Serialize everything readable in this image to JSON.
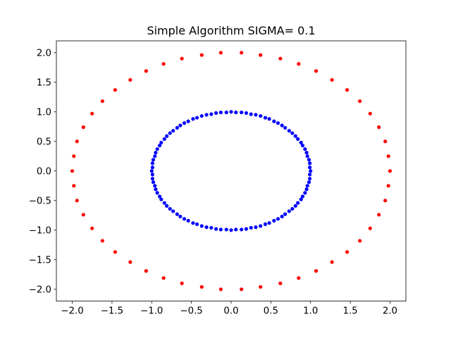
{
  "chart_data": {
    "type": "scatter",
    "title": "Simple Algorithm SIGMA= 0.1",
    "xlabel": "",
    "ylabel": "",
    "xlim": [
      -2.2,
      2.2
    ],
    "ylim": [
      -2.2,
      2.2
    ],
    "xticks": [
      -2.0,
      -1.5,
      -1.0,
      -0.5,
      0.0,
      0.5,
      1.0,
      1.5,
      2.0
    ],
    "yticks": [
      -2.0,
      -1.5,
      -1.0,
      -0.5,
      0.0,
      0.5,
      1.0,
      1.5,
      2.0
    ],
    "xtick_labels": [
      "−2.0",
      "−1.5",
      "−1.0",
      "−0.5",
      "0.0",
      "0.5",
      "1.0",
      "1.5",
      "2.0"
    ],
    "ytick_labels": [
      "−2.0",
      "−1.5",
      "−1.0",
      "−0.5",
      "0.0",
      "0.5",
      "1.0",
      "1.5",
      "2.0"
    ],
    "grid": false,
    "legend": "none",
    "series": [
      {
        "color": "#ff0000",
        "points": [
          [
            2.0,
            0.0
          ],
          [
            1.98,
            0.25
          ],
          [
            1.94,
            0.5
          ],
          [
            1.86,
            0.74
          ],
          [
            1.75,
            0.97
          ],
          [
            1.62,
            1.18
          ],
          [
            1.46,
            1.37
          ],
          [
            1.27,
            1.54
          ],
          [
            1.07,
            1.69
          ],
          [
            0.85,
            1.81
          ],
          [
            0.62,
            1.9
          ],
          [
            0.37,
            1.96
          ],
          [
            0.13,
            2.0
          ],
          [
            -0.13,
            2.0
          ],
          [
            -0.37,
            1.96
          ],
          [
            -0.62,
            1.9
          ],
          [
            -0.85,
            1.81
          ],
          [
            -1.07,
            1.69
          ],
          [
            -1.27,
            1.54
          ],
          [
            -1.46,
            1.37
          ],
          [
            -1.62,
            1.18
          ],
          [
            -1.75,
            0.97
          ],
          [
            -1.86,
            0.74
          ],
          [
            -1.94,
            0.5
          ],
          [
            -1.98,
            0.25
          ],
          [
            -2.0,
            0.0
          ],
          [
            -1.98,
            -0.25
          ],
          [
            -1.94,
            -0.5
          ],
          [
            -1.86,
            -0.74
          ],
          [
            -1.75,
            -0.97
          ],
          [
            -1.62,
            -1.18
          ],
          [
            -1.46,
            -1.37
          ],
          [
            -1.27,
            -1.54
          ],
          [
            -1.07,
            -1.69
          ],
          [
            -0.85,
            -1.81
          ],
          [
            -0.62,
            -1.9
          ],
          [
            -0.37,
            -1.96
          ],
          [
            -0.13,
            -2.0
          ],
          [
            0.13,
            -2.0
          ],
          [
            0.37,
            -1.96
          ],
          [
            0.62,
            -1.9
          ],
          [
            0.85,
            -1.81
          ],
          [
            1.07,
            -1.69
          ],
          [
            1.27,
            -1.54
          ],
          [
            1.46,
            -1.37
          ],
          [
            1.62,
            -1.18
          ],
          [
            1.75,
            -0.97
          ],
          [
            1.86,
            -0.74
          ],
          [
            1.94,
            -0.5
          ],
          [
            1.98,
            -0.25
          ]
        ]
      },
      {
        "color": "#0000ff",
        "points": [
          [
            1.0,
            0.0
          ],
          [
            0.99,
            0.06
          ],
          [
            0.99,
            0.13
          ],
          [
            0.98,
            0.19
          ],
          [
            0.96,
            0.25
          ],
          [
            0.95,
            0.31
          ],
          [
            0.93,
            0.37
          ],
          [
            0.9,
            0.43
          ],
          [
            0.88,
            0.48
          ],
          [
            0.84,
            0.54
          ],
          [
            0.81,
            0.59
          ],
          [
            0.77,
            0.64
          ],
          [
            0.73,
            0.68
          ],
          [
            0.68,
            0.73
          ],
          [
            0.64,
            0.77
          ],
          [
            0.59,
            0.81
          ],
          [
            0.54,
            0.84
          ],
          [
            0.48,
            0.88
          ],
          [
            0.43,
            0.9
          ],
          [
            0.37,
            0.93
          ],
          [
            0.31,
            0.95
          ],
          [
            0.25,
            0.96
          ],
          [
            0.19,
            0.98
          ],
          [
            0.13,
            0.99
          ],
          [
            0.06,
            0.99
          ],
          [
            0.0,
            1.0
          ],
          [
            -0.06,
            0.99
          ],
          [
            -0.13,
            0.99
          ],
          [
            -0.19,
            0.98
          ],
          [
            -0.25,
            0.96
          ],
          [
            -0.31,
            0.95
          ],
          [
            -0.37,
            0.93
          ],
          [
            -0.43,
            0.9
          ],
          [
            -0.48,
            0.88
          ],
          [
            -0.54,
            0.84
          ],
          [
            -0.59,
            0.81
          ],
          [
            -0.64,
            0.77
          ],
          [
            -0.68,
            0.73
          ],
          [
            -0.73,
            0.68
          ],
          [
            -0.77,
            0.64
          ],
          [
            -0.81,
            0.59
          ],
          [
            -0.84,
            0.54
          ],
          [
            -0.88,
            0.48
          ],
          [
            -0.9,
            0.43
          ],
          [
            -0.93,
            0.37
          ],
          [
            -0.95,
            0.31
          ],
          [
            -0.96,
            0.25
          ],
          [
            -0.98,
            0.19
          ],
          [
            -0.99,
            0.13
          ],
          [
            -0.99,
            0.06
          ],
          [
            -1.0,
            0.0
          ],
          [
            -0.99,
            -0.06
          ],
          [
            -0.99,
            -0.13
          ],
          [
            -0.98,
            -0.19
          ],
          [
            -0.96,
            -0.25
          ],
          [
            -0.95,
            -0.31
          ],
          [
            -0.93,
            -0.37
          ],
          [
            -0.9,
            -0.43
          ],
          [
            -0.88,
            -0.48
          ],
          [
            -0.84,
            -0.54
          ],
          [
            -0.81,
            -0.59
          ],
          [
            -0.77,
            -0.64
          ],
          [
            -0.73,
            -0.68
          ],
          [
            -0.68,
            -0.73
          ],
          [
            -0.64,
            -0.77
          ],
          [
            -0.59,
            -0.81
          ],
          [
            -0.54,
            -0.84
          ],
          [
            -0.48,
            -0.88
          ],
          [
            -0.43,
            -0.9
          ],
          [
            -0.37,
            -0.93
          ],
          [
            -0.31,
            -0.95
          ],
          [
            -0.25,
            -0.96
          ],
          [
            -0.19,
            -0.98
          ],
          [
            -0.13,
            -0.99
          ],
          [
            -0.06,
            -0.99
          ],
          [
            0.0,
            -1.0
          ],
          [
            0.06,
            -0.99
          ],
          [
            0.13,
            -0.99
          ],
          [
            0.19,
            -0.98
          ],
          [
            0.25,
            -0.96
          ],
          [
            0.31,
            -0.95
          ],
          [
            0.37,
            -0.93
          ],
          [
            0.43,
            -0.9
          ],
          [
            0.48,
            -0.88
          ],
          [
            0.54,
            -0.84
          ],
          [
            0.59,
            -0.81
          ],
          [
            0.64,
            -0.77
          ],
          [
            0.68,
            -0.73
          ],
          [
            0.73,
            -0.68
          ],
          [
            0.77,
            -0.64
          ],
          [
            0.81,
            -0.59
          ],
          [
            0.84,
            -0.54
          ],
          [
            0.88,
            -0.48
          ],
          [
            0.9,
            -0.43
          ],
          [
            0.93,
            -0.37
          ],
          [
            0.95,
            -0.31
          ],
          [
            0.96,
            -0.25
          ],
          [
            0.98,
            -0.19
          ],
          [
            0.99,
            -0.13
          ],
          [
            0.99,
            -0.06
          ]
        ]
      }
    ]
  }
}
